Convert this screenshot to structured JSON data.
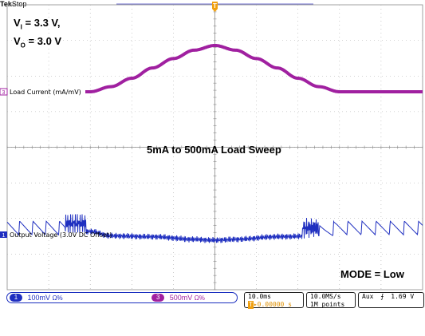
{
  "header": {
    "brand": "Tek",
    "state": "Stop"
  },
  "annotations": {
    "conditions_line1_prefix": "V",
    "conditions_line1_sub": "I",
    "conditions_line1_rest": " = 3.3 V,",
    "conditions_line2_prefix": "V",
    "conditions_line2_sub": "O",
    "conditions_line2_rest": " = 3.0 V",
    "sweep": "5mA to 500mA Load Sweep",
    "mode": "MODE = Low"
  },
  "channels": [
    {
      "num": "3",
      "label": "Load Current (mA/mV)",
      "color": "#a020a0"
    },
    {
      "num": "1",
      "label": "Output Voltage (3.0V DC Offset)",
      "color": "#1f2fc0"
    }
  ],
  "status_bar": {
    "ch1_num": "1",
    "ch1_scale": "100mV",
    "ch3_num": "3",
    "ch3_scale": "500mV",
    "bw_symbol": "Ω%",
    "timebase": "10.0ms",
    "trigger_pos": "▸0.00000 s",
    "trigger_marker": "T",
    "sample_rate": "10.0MS/s",
    "record_length": "1M points",
    "trigger_source": "Aux",
    "trigger_slope": "⨍",
    "trigger_level": "1.69 V"
  },
  "chart_data": {
    "type": "line",
    "title": "5mA to 500mA Load Sweep",
    "xlabel": "",
    "ylabel": "",
    "x_unit": "ms",
    "x_per_div": 10,
    "x_divisions": 10,
    "series": [
      {
        "name": "Load Current (mA/mV)",
        "scale_per_div": "500mV",
        "x": [
          -50,
          -40,
          -30,
          -25,
          -20,
          -15,
          -10,
          -5,
          0,
          5,
          10,
          15,
          20,
          25,
          30,
          40,
          50
        ],
        "values": [
          5,
          5,
          5,
          60,
          150,
          260,
          360,
          450,
          500,
          450,
          360,
          260,
          150,
          60,
          5,
          5,
          5
        ]
      },
      {
        "name": "Output Voltage (3.0V DC Offset)",
        "scale_per_div": "100mV",
        "x": [
          -50,
          -40,
          -30,
          -25,
          -15,
          -5,
          0,
          5,
          15,
          25,
          30,
          40,
          50
        ],
        "values": [
          0,
          0,
          0,
          -10,
          -12,
          -18,
          -20,
          -18,
          -12,
          -10,
          0,
          0,
          0
        ]
      }
    ]
  }
}
